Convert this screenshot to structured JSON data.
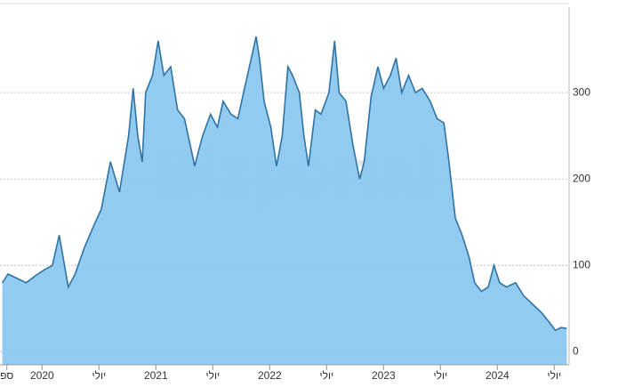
{
  "chart_data": {
    "type": "area",
    "watermark": "Bizportal",
    "x": [
      2019.65,
      2019.7,
      2019.78,
      2019.86,
      2019.94,
      2020.02,
      2020.09,
      2020.15,
      2020.19,
      2020.23,
      2020.29,
      2020.37,
      2020.45,
      2020.52,
      2020.6,
      2020.68,
      2020.76,
      2020.8,
      2020.84,
      2020.88,
      2020.91,
      2020.97,
      2021.02,
      2021.07,
      2021.13,
      2021.19,
      2021.25,
      2021.3,
      2021.34,
      2021.41,
      2021.48,
      2021.54,
      2021.59,
      2021.66,
      2021.72,
      2021.77,
      2021.83,
      2021.88,
      2021.91,
      2021.95,
      2022.01,
      2022.06,
      2022.11,
      2022.16,
      2022.2,
      2022.26,
      2022.3,
      2022.34,
      2022.4,
      2022.45,
      2022.52,
      2022.57,
      2022.61,
      2022.67,
      2022.73,
      2022.79,
      2022.83,
      2022.89,
      2022.95,
      2023.0,
      2023.06,
      2023.11,
      2023.16,
      2023.22,
      2023.28,
      2023.34,
      2023.41,
      2023.47,
      2023.53,
      2023.57,
      2023.63,
      2023.69,
      2023.75,
      2023.8,
      2023.86,
      2023.92,
      2023.97,
      2024.02,
      2024.08,
      2024.16,
      2024.23,
      2024.31,
      2024.39,
      2024.45,
      2024.51,
      2024.56,
      2024.61
    ],
    "values": [
      80,
      90,
      85,
      80,
      88,
      95,
      100,
      135,
      105,
      75,
      90,
      120,
      145,
      165,
      220,
      185,
      250,
      305,
      250,
      220,
      300,
      320,
      360,
      320,
      330,
      280,
      270,
      240,
      215,
      250,
      275,
      260,
      290,
      275,
      270,
      300,
      335,
      365,
      340,
      290,
      260,
      215,
      250,
      330,
      320,
      300,
      250,
      215,
      280,
      275,
      300,
      360,
      300,
      290,
      240,
      200,
      220,
      295,
      330,
      305,
      320,
      340,
      300,
      320,
      300,
      305,
      290,
      270,
      265,
      225,
      155,
      135,
      110,
      80,
      70,
      75,
      100,
      80,
      75,
      80,
      65,
      55,
      45,
      35,
      25,
      28,
      27
    ],
    "color": "#2e73a4",
    "fill": "#8cc8ee",
    "xlim": [
      2019.63,
      2024.63
    ],
    "ylim": [
      -15,
      399
    ],
    "xticks": [
      {
        "value": 2019.69,
        "label": "ספ"
      },
      {
        "value": 2020,
        "label": "2020"
      },
      {
        "value": 2020.5,
        "label": "יולי"
      },
      {
        "value": 2021,
        "label": "2021"
      },
      {
        "value": 2021.5,
        "label": "יולי"
      },
      {
        "value": 2022,
        "label": "2022"
      },
      {
        "value": 2022.5,
        "label": "יולי"
      },
      {
        "value": 2023,
        "label": "2023"
      },
      {
        "value": 2023.5,
        "label": "יולי"
      },
      {
        "value": 2024,
        "label": "2024"
      },
      {
        "value": 2024.5,
        "label": "יולי"
      }
    ],
    "yticks": [
      0,
      100,
      200,
      300
    ],
    "grid": true
  }
}
